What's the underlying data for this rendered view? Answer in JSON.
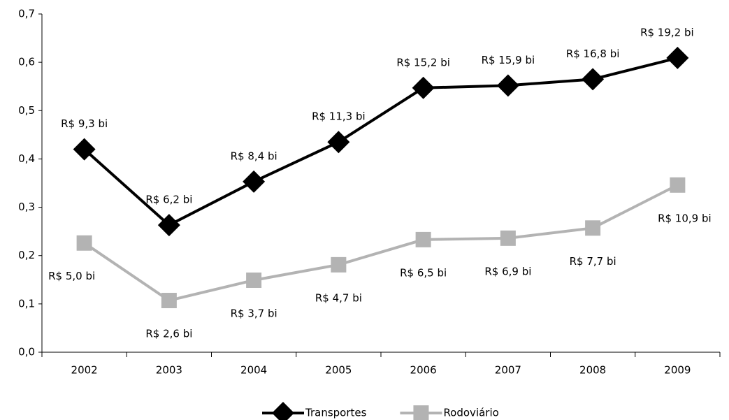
{
  "chart_data": {
    "type": "line",
    "categories": [
      "2002",
      "2003",
      "2004",
      "2005",
      "2006",
      "2007",
      "2008",
      "2009"
    ],
    "series": [
      {
        "name": "Transportes",
        "color": "#000000",
        "marker": "diamond",
        "values": [
          0.42,
          0.263,
          0.353,
          0.435,
          0.547,
          0.552,
          0.565,
          0.609
        ],
        "annotations": [
          "R$ 9,3 bi",
          "R$ 6,2 bi",
          "R$ 8,4 bi",
          "R$ 11,3 bi",
          "R$ 15,2 bi",
          "R$ 15,9 bi",
          "R$ 16,8 bi",
          "R$ 19,2 bi"
        ]
      },
      {
        "name": "Rodoviário",
        "color": "#b3b3b3",
        "marker": "square",
        "values": [
          0.226,
          0.107,
          0.149,
          0.181,
          0.233,
          0.236,
          0.257,
          0.346
        ],
        "annotations": [
          "R$ 5,0 bi",
          "R$ 2,6 bi",
          "R$ 3,7 bi",
          "R$ 4,7 bi",
          "R$ 6,5 bi",
          "R$ 6,9 bi",
          "R$ 7,7 bi",
          "R$ 10,9 bi"
        ]
      }
    ],
    "ylim": [
      0,
      0.7
    ],
    "yticks": [
      {
        "value": 0,
        "label": "0,0"
      },
      {
        "value": 0.1,
        "label": "0,1"
      },
      {
        "value": 0.2,
        "label": "0,2"
      },
      {
        "value": 0.3,
        "label": "0,3"
      },
      {
        "value": 0.4,
        "label": "0,4"
      },
      {
        "value": 0.5,
        "label": "0,5"
      },
      {
        "value": 0.6,
        "label": "0,6"
      },
      {
        "value": 0.7,
        "label": "0,7"
      }
    ],
    "grid": false,
    "legend": "bottom"
  }
}
